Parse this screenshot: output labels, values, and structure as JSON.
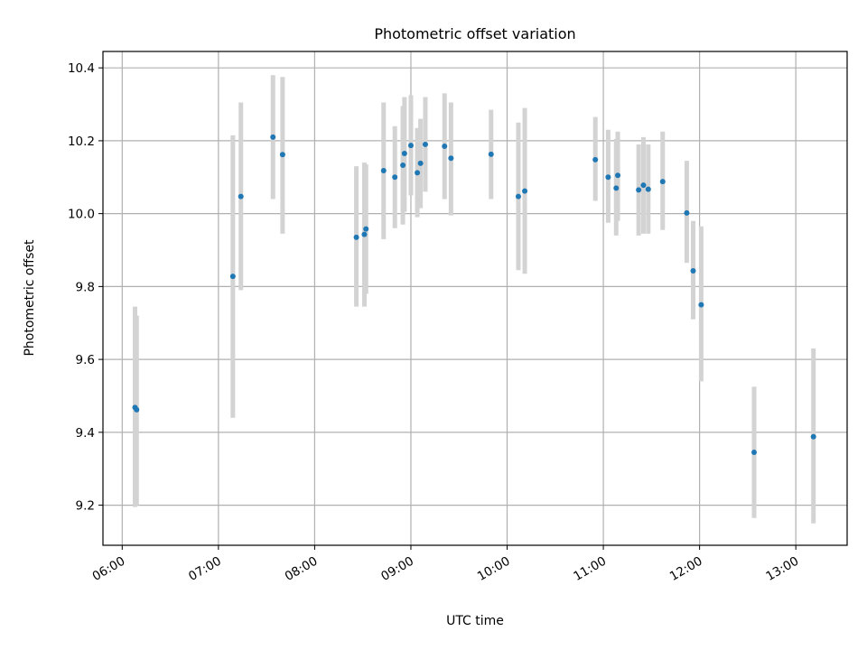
{
  "chart_data": {
    "type": "scatter",
    "title": "Photometric offset variation",
    "xlabel": "UTC time",
    "ylabel": "Photometric offset",
    "xlim": [
      "05:48",
      "13:32"
    ],
    "ylim": [
      9.09,
      10.445
    ],
    "x_ticks": [
      "06:00",
      "07:00",
      "08:00",
      "09:00",
      "10:00",
      "11:00",
      "12:00",
      "13:00"
    ],
    "y_ticks": [
      "9.2",
      "9.4",
      "9.6",
      "9.8",
      "10.0",
      "10.2",
      "10.4"
    ],
    "grid": true,
    "legend": "none",
    "colors": {
      "point": "#1f77b4",
      "error_bar": "#d3d3d3"
    },
    "series": [
      {
        "points": [
          {
            "t": "06:08",
            "y": 9.468,
            "lo": 9.195,
            "hi": 9.745
          },
          {
            "t": "06:09",
            "y": 9.462,
            "lo": 9.2,
            "hi": 9.72
          },
          {
            "t": "07:09",
            "y": 9.828,
            "lo": 9.44,
            "hi": 10.215
          },
          {
            "t": "07:14",
            "y": 10.047,
            "lo": 9.79,
            "hi": 10.305
          },
          {
            "t": "07:34",
            "y": 10.21,
            "lo": 10.04,
            "hi": 10.38
          },
          {
            "t": "07:40",
            "y": 10.162,
            "lo": 9.945,
            "hi": 10.375
          },
          {
            "t": "08:26",
            "y": 9.935,
            "lo": 9.745,
            "hi": 10.13
          },
          {
            "t": "08:31",
            "y": 9.943,
            "lo": 9.745,
            "hi": 10.14
          },
          {
            "t": "08:32",
            "y": 9.958,
            "lo": 9.78,
            "hi": 10.135
          },
          {
            "t": "08:43",
            "y": 10.118,
            "lo": 9.93,
            "hi": 10.305
          },
          {
            "t": "08:50",
            "y": 10.1,
            "lo": 9.96,
            "hi": 10.24
          },
          {
            "t": "08:55",
            "y": 10.133,
            "lo": 9.97,
            "hi": 10.295
          },
          {
            "t": "08:56",
            "y": 10.165,
            "lo": 10.005,
            "hi": 10.32
          },
          {
            "t": "09:00",
            "y": 10.187,
            "lo": 10.05,
            "hi": 10.325
          },
          {
            "t": "09:04",
            "y": 10.112,
            "lo": 9.99,
            "hi": 10.235
          },
          {
            "t": "09:06",
            "y": 10.138,
            "lo": 10.015,
            "hi": 10.26
          },
          {
            "t": "09:09",
            "y": 10.19,
            "lo": 10.06,
            "hi": 10.32
          },
          {
            "t": "09:21",
            "y": 10.185,
            "lo": 10.04,
            "hi": 10.33
          },
          {
            "t": "09:25",
            "y": 10.152,
            "lo": 9.995,
            "hi": 10.305
          },
          {
            "t": "09:50",
            "y": 10.163,
            "lo": 10.04,
            "hi": 10.285
          },
          {
            "t": "10:07",
            "y": 10.047,
            "lo": 9.845,
            "hi": 10.25
          },
          {
            "t": "10:11",
            "y": 10.062,
            "lo": 9.835,
            "hi": 10.29
          },
          {
            "t": "10:55",
            "y": 10.148,
            "lo": 10.035,
            "hi": 10.265
          },
          {
            "t": "11:03",
            "y": 10.1,
            "lo": 9.975,
            "hi": 10.23
          },
          {
            "t": "11:08",
            "y": 10.07,
            "lo": 9.94,
            "hi": 10.205
          },
          {
            "t": "11:09",
            "y": 10.105,
            "lo": 9.98,
            "hi": 10.225
          },
          {
            "t": "11:22",
            "y": 10.065,
            "lo": 9.94,
            "hi": 10.19
          },
          {
            "t": "11:25",
            "y": 10.078,
            "lo": 9.945,
            "hi": 10.21
          },
          {
            "t": "11:28",
            "y": 10.067,
            "lo": 9.945,
            "hi": 10.19
          },
          {
            "t": "11:37",
            "y": 10.088,
            "lo": 9.955,
            "hi": 10.225
          },
          {
            "t": "11:52",
            "y": 10.002,
            "lo": 9.865,
            "hi": 10.145
          },
          {
            "t": "11:56",
            "y": 9.843,
            "lo": 9.71,
            "hi": 9.98
          },
          {
            "t": "12:01",
            "y": 9.75,
            "lo": 9.54,
            "hi": 9.965
          },
          {
            "t": "12:34",
            "y": 9.345,
            "lo": 9.165,
            "hi": 9.525
          },
          {
            "t": "13:11",
            "y": 9.388,
            "lo": 9.15,
            "hi": 9.63
          }
        ]
      }
    ]
  }
}
